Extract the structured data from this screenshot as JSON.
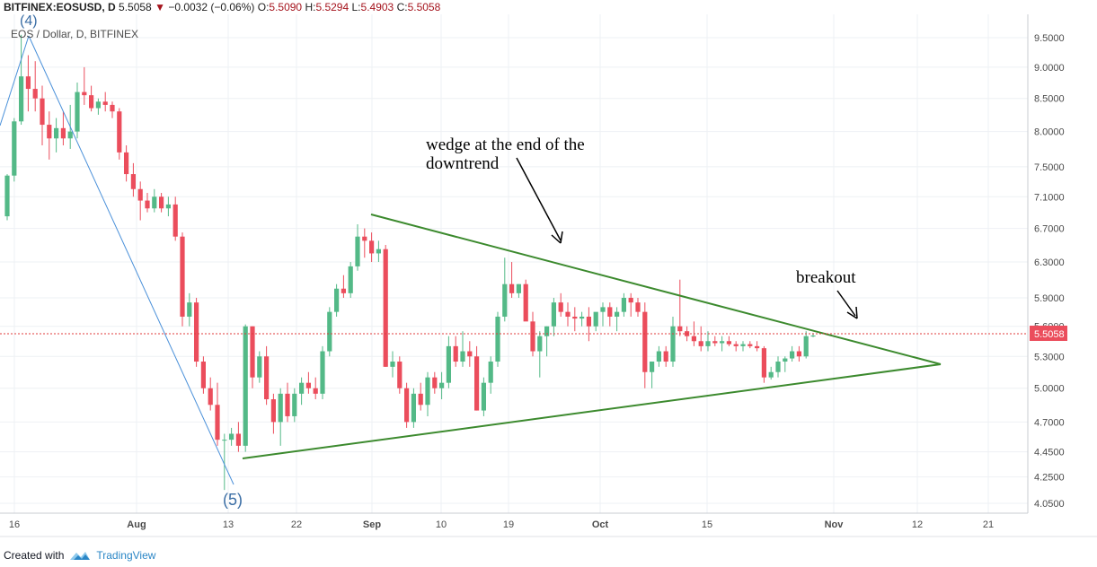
{
  "header": {
    "symbol": "BITFINEX:EOSUSD, D",
    "last": "5.5058",
    "change": "−0.0032 (−0.06%)",
    "o_label": "O:",
    "o_val": "5.5090",
    "h_label": "H:",
    "h_val": "5.5294",
    "l_label": "L:",
    "l_val": "5.4903",
    "c_label": "C:",
    "c_val": "5.5058"
  },
  "subtitle": "EOS / Dollar, D, BITFINEX",
  "footer": {
    "created_with": "Created with",
    "brand": "TradingView"
  },
  "colors": {
    "up": "#53b987",
    "down": "#eb4d5c",
    "trendline": "#3c8a2e",
    "wave": "#4a90d9",
    "grid": "#eef1f4",
    "price_line": "#e03b3b"
  },
  "chart_data": {
    "type": "candlestick",
    "x_tick_labels": [
      "16",
      "Aug",
      "13",
      "22",
      "Sep",
      "10",
      "19",
      "Oct",
      "15",
      "Nov",
      "12",
      "21"
    ],
    "y_tick_labels": [
      "9.5000",
      "9.0000",
      "8.5000",
      "8.0000",
      "7.5000",
      "7.1000",
      "6.7000",
      "6.3000",
      "5.9000",
      "5.6000",
      "5.3000",
      "5.0000",
      "4.7000",
      "4.4500",
      "4.2500",
      "4.0500"
    ],
    "last_price": "5.5058",
    "annotations": [
      "wedge at the end of the downtrend",
      "breakout"
    ],
    "wave_labels": [
      "(4)",
      "(5)"
    ],
    "candles": [
      [
        6.85,
        7.4,
        6.8,
        7.38
      ],
      [
        7.38,
        8.2,
        7.3,
        8.15
      ],
      [
        8.15,
        9.55,
        8.1,
        8.85
      ],
      [
        8.85,
        9.2,
        8.3,
        8.65
      ],
      [
        8.65,
        9.1,
        8.3,
        8.5
      ],
      [
        8.5,
        8.7,
        7.8,
        8.1
      ],
      [
        8.1,
        8.3,
        7.6,
        7.9
      ],
      [
        7.9,
        8.2,
        7.7,
        8.05
      ],
      [
        8.05,
        8.3,
        7.8,
        7.9
      ],
      [
        7.9,
        8.4,
        7.75,
        8.0
      ],
      [
        8.0,
        8.75,
        7.9,
        8.6
      ],
      [
        8.6,
        9.0,
        8.4,
        8.55
      ],
      [
        8.55,
        8.7,
        8.3,
        8.35
      ],
      [
        8.35,
        8.5,
        8.25,
        8.45
      ],
      [
        8.45,
        8.6,
        8.3,
        8.4
      ],
      [
        8.4,
        8.45,
        8.2,
        8.3
      ],
      [
        8.3,
        8.35,
        7.6,
        7.7
      ],
      [
        7.7,
        7.8,
        7.3,
        7.4
      ],
      [
        7.4,
        7.55,
        7.1,
        7.2
      ],
      [
        7.2,
        7.3,
        6.8,
        7.05
      ],
      [
        7.05,
        7.15,
        6.9,
        6.95
      ],
      [
        6.95,
        7.2,
        6.9,
        7.1
      ],
      [
        7.1,
        7.15,
        6.9,
        6.95
      ],
      [
        6.95,
        7.1,
        6.85,
        7.0
      ],
      [
        7.0,
        7.1,
        6.55,
        6.6
      ],
      [
        6.6,
        6.65,
        5.6,
        5.7
      ],
      [
        5.7,
        5.95,
        5.6,
        5.85
      ],
      [
        5.85,
        5.9,
        5.2,
        5.25
      ],
      [
        5.25,
        5.3,
        4.95,
        5.0
      ],
      [
        5.0,
        5.1,
        4.8,
        4.85
      ],
      [
        4.85,
        5.05,
        4.5,
        4.55
      ],
      [
        4.55,
        4.6,
        4.15,
        4.55
      ],
      [
        4.55,
        4.65,
        4.5,
        4.6
      ],
      [
        4.6,
        4.7,
        4.45,
        4.5
      ],
      [
        4.5,
        5.62,
        4.45,
        5.6
      ],
      [
        5.6,
        5.6,
        5.0,
        5.1
      ],
      [
        5.1,
        5.35,
        5.05,
        5.3
      ],
      [
        5.3,
        5.4,
        4.85,
        4.9
      ],
      [
        4.9,
        4.95,
        4.6,
        4.7
      ],
      [
        4.7,
        5.0,
        4.5,
        4.95
      ],
      [
        4.95,
        5.05,
        4.7,
        4.75
      ],
      [
        4.75,
        5.0,
        4.7,
        4.95
      ],
      [
        4.95,
        5.1,
        4.85,
        5.05
      ],
      [
        5.05,
        5.15,
        4.95,
        5.0
      ],
      [
        5.0,
        5.1,
        4.9,
        4.95
      ],
      [
        4.95,
        5.4,
        4.9,
        5.35
      ],
      [
        5.35,
        5.8,
        5.3,
        5.75
      ],
      [
        5.75,
        6.05,
        5.7,
        6.0
      ],
      [
        6.0,
        6.15,
        5.9,
        5.95
      ],
      [
        5.95,
        6.3,
        5.9,
        6.25
      ],
      [
        6.25,
        6.75,
        6.2,
        6.6
      ],
      [
        6.6,
        6.7,
        6.35,
        6.55
      ],
      [
        6.55,
        6.65,
        6.3,
        6.4
      ],
      [
        6.4,
        6.55,
        6.3,
        6.45
      ],
      [
        6.45,
        6.5,
        5.2,
        5.2
      ],
      [
        5.2,
        5.35,
        5.1,
        5.25
      ],
      [
        5.25,
        5.3,
        4.95,
        5.0
      ],
      [
        5.0,
        5.05,
        4.65,
        4.7
      ],
      [
        4.7,
        5.0,
        4.65,
        4.95
      ],
      [
        4.95,
        5.05,
        4.8,
        4.85
      ],
      [
        4.85,
        5.15,
        4.75,
        5.1
      ],
      [
        5.1,
        5.15,
        4.95,
        5.0
      ],
      [
        5.0,
        5.15,
        4.9,
        5.05
      ],
      [
        5.05,
        5.5,
        5.0,
        5.4
      ],
      [
        5.4,
        5.5,
        5.2,
        5.25
      ],
      [
        5.25,
        5.55,
        5.2,
        5.35
      ],
      [
        5.35,
        5.45,
        5.2,
        5.3
      ],
      [
        5.3,
        5.4,
        4.8,
        4.8
      ],
      [
        4.8,
        5.1,
        4.75,
        5.05
      ],
      [
        5.05,
        5.3,
        4.95,
        5.25
      ],
      [
        5.25,
        5.75,
        5.2,
        5.7
      ],
      [
        5.7,
        6.35,
        5.65,
        6.05
      ],
      [
        6.05,
        6.3,
        5.9,
        5.95
      ],
      [
        5.95,
        6.05,
        5.9,
        6.05
      ],
      [
        6.05,
        6.1,
        5.7,
        5.65
      ],
      [
        5.65,
        5.75,
        5.3,
        5.35
      ],
      [
        5.35,
        5.55,
        5.1,
        5.5
      ],
      [
        5.5,
        5.6,
        5.3,
        5.6
      ],
      [
        5.6,
        5.9,
        5.5,
        5.85
      ],
      [
        5.85,
        5.95,
        5.7,
        5.75
      ],
      [
        5.75,
        5.85,
        5.6,
        5.7
      ],
      [
        5.7,
        5.8,
        5.55,
        5.68
      ],
      [
        5.68,
        5.75,
        5.6,
        5.7
      ],
      [
        5.7,
        5.8,
        5.45,
        5.6
      ],
      [
        5.6,
        5.7,
        5.55,
        5.75
      ],
      [
        5.75,
        5.85,
        5.6,
        5.8
      ],
      [
        5.8,
        5.85,
        5.6,
        5.7
      ],
      [
        5.7,
        5.8,
        5.55,
        5.75
      ],
      [
        5.75,
        5.95,
        5.7,
        5.9
      ],
      [
        5.9,
        5.95,
        5.7,
        5.85
      ],
      [
        5.85,
        5.9,
        5.7,
        5.75
      ],
      [
        5.75,
        5.85,
        5.0,
        5.15
      ],
      [
        5.15,
        5.25,
        5.0,
        5.25
      ],
      [
        5.25,
        5.4,
        5.2,
        5.35
      ],
      [
        5.35,
        5.4,
        5.2,
        5.25
      ],
      [
        5.25,
        5.7,
        5.2,
        5.6
      ],
      [
        5.6,
        6.1,
        5.5,
        5.55
      ],
      [
        5.55,
        5.6,
        5.45,
        5.5
      ],
      [
        5.5,
        5.65,
        5.4,
        5.45
      ],
      [
        5.45,
        5.6,
        5.35,
        5.4
      ],
      [
        5.4,
        5.55,
        5.35,
        5.45
      ],
      [
        5.45,
        5.5,
        5.4,
        5.43
      ],
      [
        5.43,
        5.5,
        5.35,
        5.45
      ],
      [
        5.45,
        5.5,
        5.4,
        5.42
      ],
      [
        5.42,
        5.45,
        5.35,
        5.4
      ],
      [
        5.4,
        5.45,
        5.35,
        5.42
      ],
      [
        5.42,
        5.45,
        5.38,
        5.4
      ],
      [
        5.4,
        5.45,
        5.35,
        5.38
      ],
      [
        5.38,
        5.4,
        5.05,
        5.1
      ],
      [
        5.1,
        5.2,
        5.08,
        5.15
      ],
      [
        5.15,
        5.3,
        5.1,
        5.25
      ],
      [
        5.25,
        5.3,
        5.15,
        5.28
      ],
      [
        5.28,
        5.4,
        5.25,
        5.35
      ],
      [
        5.35,
        5.4,
        5.25,
        5.3
      ],
      [
        5.3,
        5.55,
        5.28,
        5.5
      ],
      [
        5.5,
        5.53,
        5.49,
        5.5058
      ]
    ]
  }
}
